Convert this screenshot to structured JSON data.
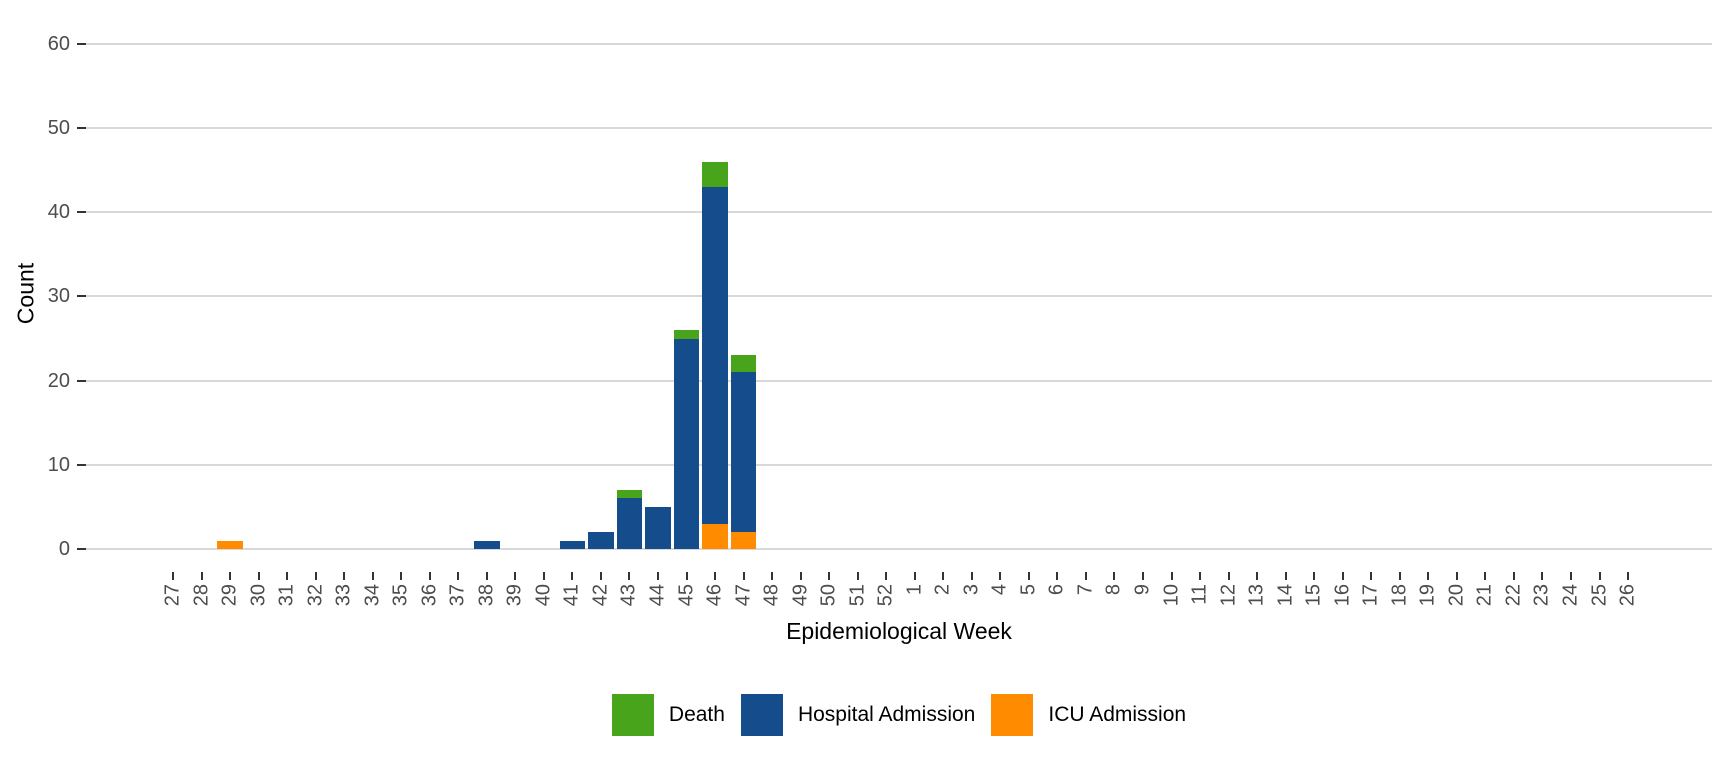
{
  "chart_data": {
    "type": "bar",
    "stacked": true,
    "title": "",
    "xlabel": "Epidemiological Week",
    "ylabel": "Count",
    "categories": [
      "27",
      "28",
      "29",
      "30",
      "31",
      "32",
      "33",
      "34",
      "35",
      "36",
      "37",
      "38",
      "39",
      "40",
      "41",
      "42",
      "43",
      "44",
      "45",
      "46",
      "47",
      "48",
      "49",
      "50",
      "51",
      "52",
      "1",
      "2",
      "3",
      "4",
      "5",
      "6",
      "7",
      "8",
      "9",
      "10",
      "11",
      "12",
      "13",
      "14",
      "15",
      "16",
      "17",
      "18",
      "19",
      "20",
      "21",
      "22",
      "23",
      "24",
      "25",
      "26"
    ],
    "series": [
      {
        "name": "ICU Admission",
        "color": "#FF8C00",
        "values": [
          0,
          0,
          1,
          0,
          0,
          0,
          0,
          0,
          0,
          0,
          0,
          0,
          0,
          0,
          0,
          0,
          0,
          0,
          0,
          3,
          2,
          0,
          0,
          0,
          0,
          0,
          0,
          0,
          0,
          0,
          0,
          0,
          0,
          0,
          0,
          0,
          0,
          0,
          0,
          0,
          0,
          0,
          0,
          0,
          0,
          0,
          0,
          0,
          0,
          0,
          0,
          0
        ]
      },
      {
        "name": "Hospital Admission",
        "color": "#154C8C",
        "values": [
          0,
          0,
          0,
          0,
          0,
          0,
          0,
          0,
          0,
          0,
          0,
          1,
          0,
          0,
          1,
          2,
          6,
          5,
          25,
          40,
          19,
          0,
          0,
          0,
          0,
          0,
          0,
          0,
          0,
          0,
          0,
          0,
          0,
          0,
          0,
          0,
          0,
          0,
          0,
          0,
          0,
          0,
          0,
          0,
          0,
          0,
          0,
          0,
          0,
          0,
          0,
          0
        ]
      },
      {
        "name": "Death",
        "color": "#47A41B",
        "values": [
          0,
          0,
          0,
          0,
          0,
          0,
          0,
          0,
          0,
          0,
          0,
          0,
          0,
          0,
          0,
          0,
          1,
          0,
          1,
          3,
          2,
          0,
          0,
          0,
          0,
          0,
          0,
          0,
          0,
          0,
          0,
          0,
          0,
          0,
          0,
          0,
          0,
          0,
          0,
          0,
          0,
          0,
          0,
          0,
          0,
          0,
          0,
          0,
          0,
          0,
          0,
          0
        ]
      }
    ],
    "legend_order": [
      "Death",
      "Hospital Admission",
      "ICU Admission"
    ],
    "y_ticks": [
      0,
      10,
      20,
      30,
      40,
      50,
      60
    ],
    "ylim": [
      0,
      63
    ],
    "grid": "horizontal-only",
    "legend_position": "bottom",
    "colors": {
      "gridline": "#d9d9d9",
      "tick_mark": "#333333",
      "tick_label": "#4d4d4d",
      "axis_title": "#000000",
      "background": "#ffffff"
    }
  }
}
